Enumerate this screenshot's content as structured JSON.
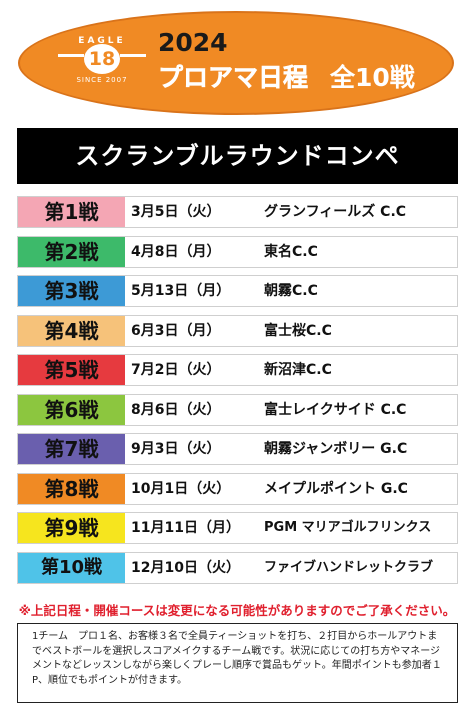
{
  "header": {
    "logo_top": "EAGLE",
    "logo_number": "18",
    "logo_since": "SINCE 2007",
    "year": "2024",
    "title": "プロアマ日程",
    "count": "全10戦"
  },
  "banner": {
    "text": "スクランブルラウンドコンペ"
  },
  "schedule": [
    {
      "round": "第1戦",
      "date": "3月5日（火）",
      "venue": "グランフィールズ C.C",
      "color": "#f4a6b4"
    },
    {
      "round": "第2戦",
      "date": "4月8日（月）",
      "venue": "東名C.C",
      "color": "#3dba6a"
    },
    {
      "round": "第3戦",
      "date": "5月13日（月）",
      "venue": "朝霧C.C",
      "color": "#3d9ad6"
    },
    {
      "round": "第4戦",
      "date": "6月3日（月）",
      "venue": "富士桜C.C",
      "color": "#f6c27a"
    },
    {
      "round": "第5戦",
      "date": "7月2日（火）",
      "venue": "新沼津C.C",
      "color": "#e63a3f"
    },
    {
      "round": "第6戦",
      "date": "8月6日（火）",
      "venue": "富士レイクサイド C.C",
      "color": "#8cc63f"
    },
    {
      "round": "第7戦",
      "date": "9月3日（火）",
      "venue": "朝霧ジャンボリー G.C",
      "color": "#6a5fae"
    },
    {
      "round": "第8戦",
      "date": "10月1日（火）",
      "venue": "メイプルポイント G.C",
      "color": "#f08a24"
    },
    {
      "round": "第9戦",
      "date": "11月11日（月）",
      "venue": "PGM マリアゴルフリンクス",
      "color": "#f6e51e"
    },
    {
      "round": "第10戦",
      "date": "12月10日（火）",
      "venue": "ファイブハンドレットクラブ",
      "color": "#4fc3e8"
    }
  ],
  "notice": "※上記日程・開催コースは変更になる可能性がありますのでご了承ください。",
  "rules": "1チーム　プロ１名、お客様３名で全員ティーショットを打ち、２打目からホールアウトまでベストボールを選択しスコアメイクするチーム戦です。状況に応じての打ち方やマネージメントなどレッスンしながら楽しくプレーし順序で賞品もゲット。年間ポイントも参加者１P、順位でもポイントが付きます。"
}
